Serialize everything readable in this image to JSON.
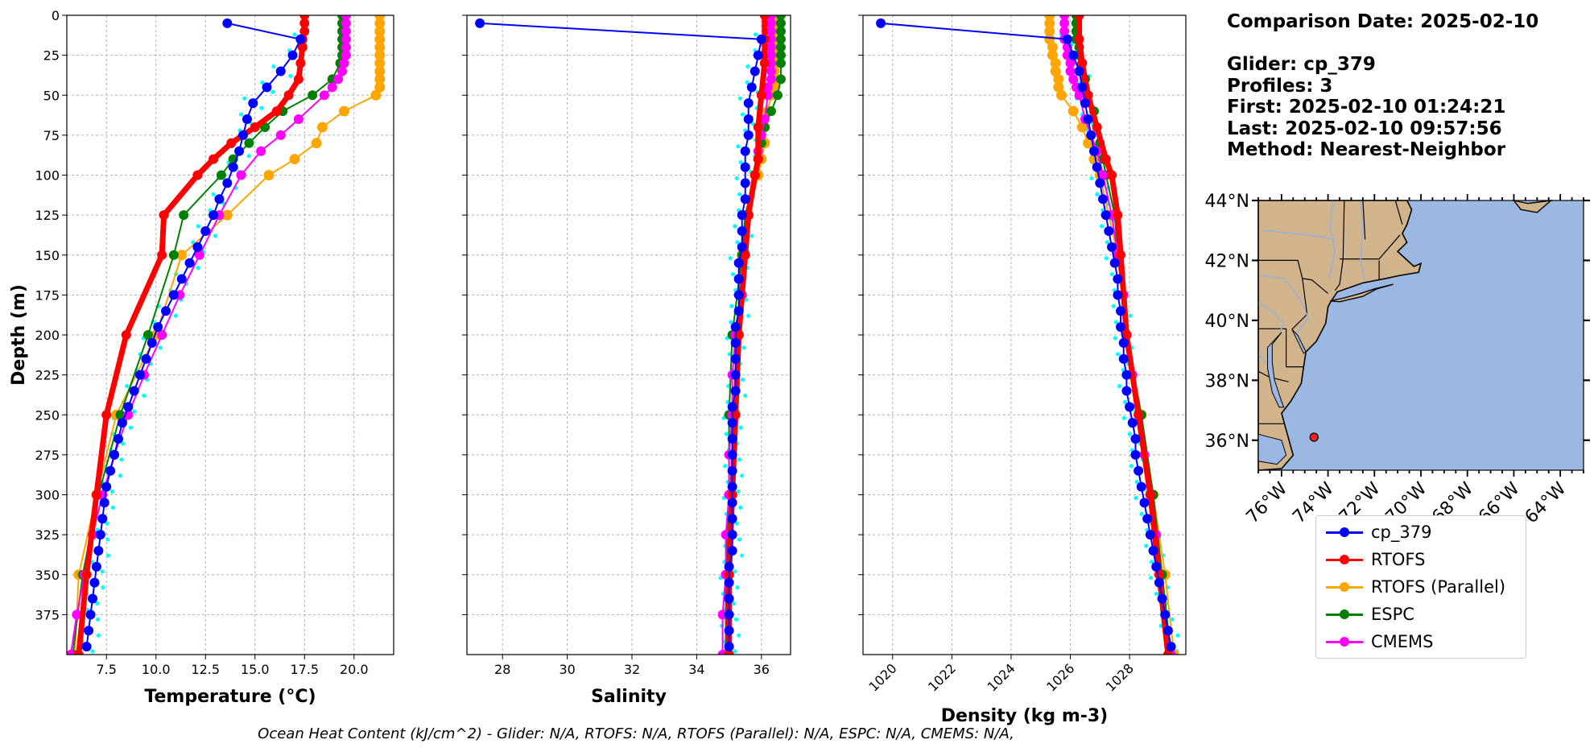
{
  "info": {
    "comparison_date": "Comparison Date: 2025-02-10",
    "glider": "Glider: cp_379",
    "profiles": "Profiles: 3",
    "first": "First: 2025-02-10 01:24:21",
    "last": "Last: 2025-02-10 09:57:56",
    "method": "Method: Nearest-Neighbor"
  },
  "footer": "Ocean Heat Content (kJ/cm^2) - Glider: N/A,  RTOFS: N/A,  RTOFS (Parallel): N/A,  ESPC: N/A,  CMEMS: N/A,",
  "colors": {
    "glider": "#0000ff",
    "rtofs": "#ff0000",
    "rtofs_parallel": "#ffa500",
    "espc": "#008000",
    "cmems": "#ff00ff",
    "glider_raw": "#00ffff",
    "land": "#d2b48c",
    "ocean": "#9bb8e2"
  },
  "legend": [
    {
      "label": "cp_379",
      "color": "#0000ff"
    },
    {
      "label": "RTOFS",
      "color": "#ff0000"
    },
    {
      "label": "RTOFS (Parallel)",
      "color": "#ffa500"
    },
    {
      "label": "ESPC",
      "color": "#008000"
    },
    {
      "label": "CMEMS",
      "color": "#ff00ff"
    }
  ],
  "chart_data": [
    {
      "type": "line",
      "xlabel": "Temperature (°C)",
      "ylabel": "Depth (m)",
      "xlim": [
        5.5,
        22.0
      ],
      "ylim": [
        400,
        0
      ],
      "x_ticks": [
        7.5,
        10.0,
        12.5,
        15.0,
        17.5,
        20.0
      ],
      "x_tick_labels": [
        "7.5",
        "10.0",
        "12.5",
        "15.0",
        "17.5",
        "20.0"
      ],
      "y_ticks": [
        0,
        25,
        50,
        75,
        100,
        125,
        150,
        175,
        200,
        225,
        250,
        275,
        300,
        325,
        350,
        375
      ],
      "y_tick_labels": [
        "0",
        "25",
        "50",
        "75",
        "100",
        "125",
        "150",
        "175",
        "200",
        "225",
        "250",
        "275",
        "300",
        "325",
        "350",
        "375"
      ],
      "grid": true,
      "series": [
        {
          "name": "cp_379",
          "depth": [
            5,
            15,
            25,
            35,
            45,
            55,
            65,
            75,
            85,
            95,
            105,
            115,
            125,
            135,
            145,
            155,
            165,
            175,
            185,
            195,
            205,
            215,
            225,
            235,
            245,
            255,
            265,
            275,
            285,
            295,
            305,
            315,
            325,
            335,
            345,
            355,
            365,
            375,
            385,
            395
          ],
          "values": [
            13.6,
            17.3,
            16.9,
            16.3,
            15.6,
            14.9,
            14.6,
            14.4,
            14.2,
            13.9,
            13.6,
            13.2,
            12.9,
            12.5,
            12.1,
            11.7,
            11.3,
            10.9,
            10.5,
            10.1,
            9.8,
            9.5,
            9.2,
            8.9,
            8.6,
            8.3,
            8.1,
            7.9,
            7.7,
            7.5,
            7.4,
            7.3,
            7.2,
            7.1,
            7.0,
            6.9,
            6.8,
            6.7,
            6.6,
            6.5
          ]
        },
        {
          "name": "RTOFS",
          "depth": [
            0,
            5,
            10,
            15,
            20,
            30,
            40,
            50,
            60,
            70,
            80,
            90,
            100,
            125,
            150,
            200,
            250,
            300,
            350,
            400
          ],
          "values": [
            17.5,
            17.5,
            17.5,
            17.4,
            17.4,
            17.3,
            17.2,
            16.7,
            16.1,
            15.0,
            13.8,
            12.9,
            12.1,
            10.4,
            10.3,
            8.5,
            7.5,
            7.0,
            6.5,
            6.1
          ]
        },
        {
          "name": "RTOFS (Parallel)",
          "depth": [
            0,
            5,
            10,
            15,
            20,
            25,
            30,
            35,
            40,
            45,
            50,
            60,
            70,
            80,
            90,
            100,
            125,
            150,
            200,
            250,
            300,
            350,
            400
          ],
          "values": [
            21.3,
            21.3,
            21.3,
            21.3,
            21.3,
            21.3,
            21.3,
            21.3,
            21.3,
            21.3,
            21.1,
            19.5,
            18.4,
            18.1,
            17.0,
            15.7,
            13.6,
            11.3,
            10.0,
            8.0,
            7.0,
            6.1,
            5.9
          ]
        },
        {
          "name": "ESPC",
          "depth": [
            0,
            5,
            10,
            15,
            20,
            25,
            30,
            40,
            50,
            60,
            70,
            80,
            90,
            100,
            125,
            150,
            200,
            250,
            300,
            350,
            400
          ],
          "values": [
            19.4,
            19.4,
            19.4,
            19.4,
            19.4,
            19.4,
            19.3,
            18.9,
            17.9,
            16.4,
            15.5,
            14.7,
            13.9,
            13.3,
            11.4,
            10.9,
            9.6,
            8.2,
            7.1,
            6.3,
            5.8
          ]
        },
        {
          "name": "CMEMS",
          "depth": [
            0,
            5,
            10,
            15,
            20,
            25,
            30,
            35,
            40,
            45,
            50,
            65,
            75,
            85,
            100,
            125,
            150,
            175,
            200,
            225,
            250,
            275,
            300,
            325,
            350,
            375,
            400
          ],
          "values": [
            19.6,
            19.6,
            19.6,
            19.6,
            19.6,
            19.6,
            19.5,
            19.4,
            19.2,
            18.9,
            18.5,
            17.2,
            16.3,
            15.3,
            14.3,
            13.2,
            12.2,
            11.2,
            10.3,
            9.4,
            8.6,
            7.9,
            7.3,
            6.8,
            6.4,
            6.0,
            5.7
          ]
        }
      ]
    },
    {
      "type": "line",
      "xlabel": "Salinity",
      "xlim": [
        26.9,
        36.9
      ],
      "ylim": [
        400,
        0
      ],
      "x_ticks": [
        28,
        30,
        32,
        34,
        36
      ],
      "x_tick_labels": [
        "28",
        "30",
        "32",
        "34",
        "36"
      ],
      "grid": true,
      "series": [
        {
          "name": "cp_379",
          "depth": [
            5,
            15,
            25,
            35,
            45,
            55,
            65,
            75,
            85,
            95,
            105,
            115,
            125,
            135,
            145,
            155,
            165,
            175,
            185,
            195,
            205,
            215,
            225,
            235,
            245,
            255,
            265,
            275,
            285,
            295,
            305,
            315,
            325,
            335,
            345,
            355,
            365,
            375,
            385,
            395
          ],
          "values": [
            27.3,
            36.0,
            35.9,
            35.8,
            35.7,
            35.6,
            35.6,
            35.6,
            35.5,
            35.5,
            35.5,
            35.5,
            35.4,
            35.4,
            35.4,
            35.3,
            35.3,
            35.3,
            35.3,
            35.2,
            35.2,
            35.2,
            35.2,
            35.2,
            35.1,
            35.1,
            35.1,
            35.1,
            35.1,
            35.1,
            35.1,
            35.1,
            35.1,
            35.1,
            35.0,
            35.0,
            35.0,
            35.0,
            35.0,
            35.0
          ]
        },
        {
          "name": "RTOFS",
          "depth": [
            0,
            15,
            30,
            50,
            70,
            90,
            100,
            125,
            150,
            200,
            250,
            300,
            350,
            400
          ],
          "values": [
            36.1,
            36.1,
            36.1,
            36.0,
            35.9,
            35.9,
            35.8,
            35.6,
            35.5,
            35.3,
            35.2,
            35.1,
            35.0,
            35.0
          ]
        },
        {
          "name": "RTOFS (Parallel)",
          "depth": [
            0,
            5,
            10,
            15,
            20,
            25,
            30,
            35,
            40,
            45,
            50,
            60,
            70,
            80,
            90,
            100,
            125,
            150,
            200,
            250,
            300,
            350,
            400
          ],
          "values": [
            36.4,
            36.4,
            36.4,
            36.4,
            36.4,
            36.4,
            36.4,
            36.4,
            36.4,
            36.4,
            36.3,
            36.2,
            36.1,
            36.1,
            36.0,
            35.9,
            35.6,
            35.4,
            35.3,
            35.1,
            35.1,
            35.0,
            34.9
          ]
        },
        {
          "name": "ESPC",
          "depth": [
            0,
            5,
            10,
            15,
            20,
            25,
            30,
            40,
            50,
            60,
            70,
            80,
            90,
            100,
            125,
            150,
            200,
            250,
            300,
            350,
            400
          ],
          "values": [
            36.6,
            36.6,
            36.6,
            36.6,
            36.6,
            36.6,
            36.6,
            36.6,
            36.5,
            36.3,
            36.1,
            36.0,
            35.9,
            35.8,
            35.5,
            35.4,
            35.1,
            35.0,
            35.0,
            34.9,
            34.9
          ]
        },
        {
          "name": "CMEMS",
          "depth": [
            0,
            5,
            10,
            15,
            20,
            25,
            30,
            35,
            40,
            45,
            50,
            65,
            75,
            85,
            100,
            125,
            150,
            175,
            200,
            225,
            250,
            275,
            300,
            325,
            350,
            375,
            400
          ],
          "values": [
            36.3,
            36.3,
            36.3,
            36.3,
            36.3,
            36.3,
            36.3,
            36.3,
            36.3,
            36.2,
            36.2,
            36.1,
            36.0,
            35.9,
            35.8,
            35.6,
            35.5,
            35.4,
            35.2,
            35.1,
            35.1,
            35.0,
            35.0,
            34.9,
            34.9,
            34.8,
            34.8
          ]
        }
      ]
    },
    {
      "type": "line",
      "xlabel": "Density (kg m-3)",
      "xlim": [
        1019.0,
        1029.9
      ],
      "ylim": [
        400,
        0
      ],
      "x_ticks": [
        1020,
        1022,
        1024,
        1026,
        1028
      ],
      "x_tick_labels": [
        "1020",
        "1022",
        "1024",
        "1026",
        "1028"
      ],
      "grid": true,
      "series": [
        {
          "name": "cp_379",
          "depth": [
            5,
            15,
            25,
            35,
            45,
            55,
            65,
            75,
            85,
            95,
            105,
            115,
            125,
            135,
            145,
            155,
            165,
            175,
            185,
            195,
            205,
            215,
            225,
            235,
            245,
            255,
            265,
            275,
            285,
            295,
            305,
            315,
            325,
            335,
            345,
            355,
            365,
            375,
            385,
            395
          ],
          "values": [
            1019.6,
            1025.9,
            1026.1,
            1026.3,
            1026.4,
            1026.5,
            1026.6,
            1026.7,
            1026.8,
            1026.9,
            1027.0,
            1027.1,
            1027.2,
            1027.3,
            1027.4,
            1027.5,
            1027.6,
            1027.6,
            1027.7,
            1027.7,
            1027.8,
            1027.8,
            1027.9,
            1027.9,
            1028.0,
            1028.1,
            1028.2,
            1028.2,
            1028.3,
            1028.4,
            1028.5,
            1028.6,
            1028.7,
            1028.8,
            1028.9,
            1029.0,
            1029.1,
            1029.2,
            1029.3,
            1029.4
          ]
        },
        {
          "name": "RTOFS",
          "depth": [
            0,
            15,
            30,
            50,
            70,
            90,
            100,
            125,
            150,
            200,
            250,
            300,
            350,
            400
          ],
          "values": [
            1026.3,
            1026.3,
            1026.4,
            1026.6,
            1026.9,
            1027.2,
            1027.4,
            1027.6,
            1027.7,
            1027.9,
            1028.3,
            1028.7,
            1029.0,
            1029.3
          ]
        },
        {
          "name": "RTOFS (Parallel)",
          "depth": [
            0,
            5,
            10,
            15,
            20,
            25,
            30,
            35,
            40,
            45,
            50,
            60,
            70,
            80,
            90,
            100,
            125,
            150,
            200,
            250,
            300,
            350,
            400
          ],
          "values": [
            1025.3,
            1025.3,
            1025.3,
            1025.3,
            1025.4,
            1025.4,
            1025.5,
            1025.5,
            1025.6,
            1025.6,
            1025.7,
            1026.1,
            1026.4,
            1026.6,
            1026.8,
            1027.0,
            1027.3,
            1027.6,
            1027.9,
            1028.4,
            1028.8,
            1029.2,
            1029.5
          ]
        },
        {
          "name": "ESPC",
          "depth": [
            0,
            5,
            10,
            15,
            20,
            25,
            30,
            40,
            50,
            60,
            70,
            80,
            90,
            100,
            125,
            150,
            200,
            250,
            300,
            350,
            400
          ],
          "values": [
            1026.2,
            1026.2,
            1026.2,
            1026.2,
            1026.3,
            1026.3,
            1026.4,
            1026.5,
            1026.6,
            1026.8,
            1026.9,
            1027.0,
            1027.1,
            1027.2,
            1027.5,
            1027.6,
            1027.9,
            1028.4,
            1028.8,
            1029.1,
            1029.4
          ]
        },
        {
          "name": "CMEMS",
          "depth": [
            0,
            5,
            10,
            15,
            20,
            25,
            30,
            35,
            40,
            45,
            50,
            65,
            75,
            85,
            100,
            125,
            150,
            175,
            200,
            225,
            250,
            275,
            300,
            325,
            350,
            375,
            400
          ],
          "values": [
            1025.8,
            1025.8,
            1025.8,
            1025.8,
            1025.9,
            1025.9,
            1026.0,
            1026.0,
            1026.1,
            1026.2,
            1026.3,
            1026.5,
            1026.7,
            1026.9,
            1027.1,
            1027.4,
            1027.6,
            1027.8,
            1027.9,
            1028.1,
            1028.3,
            1028.5,
            1028.7,
            1028.9,
            1029.0,
            1029.2,
            1029.4
          ]
        }
      ]
    }
  ],
  "map": {
    "lat_labels": [
      "44°N",
      "42°N",
      "40°N",
      "38°N",
      "36°N"
    ],
    "lon_labels": [
      "76°W",
      "74°W",
      "72°W",
      "70°W",
      "68°W",
      "66°W",
      "64°W"
    ],
    "lon_ticks": [
      -76,
      -74,
      -72,
      -70,
      -68,
      -66,
      -64
    ],
    "lat_ticks": [
      44,
      42,
      40,
      38,
      36
    ],
    "extent": [
      -77,
      -63,
      35,
      44
    ],
    "glider_position": {
      "lon": -74.6,
      "lat": 36.1
    }
  }
}
